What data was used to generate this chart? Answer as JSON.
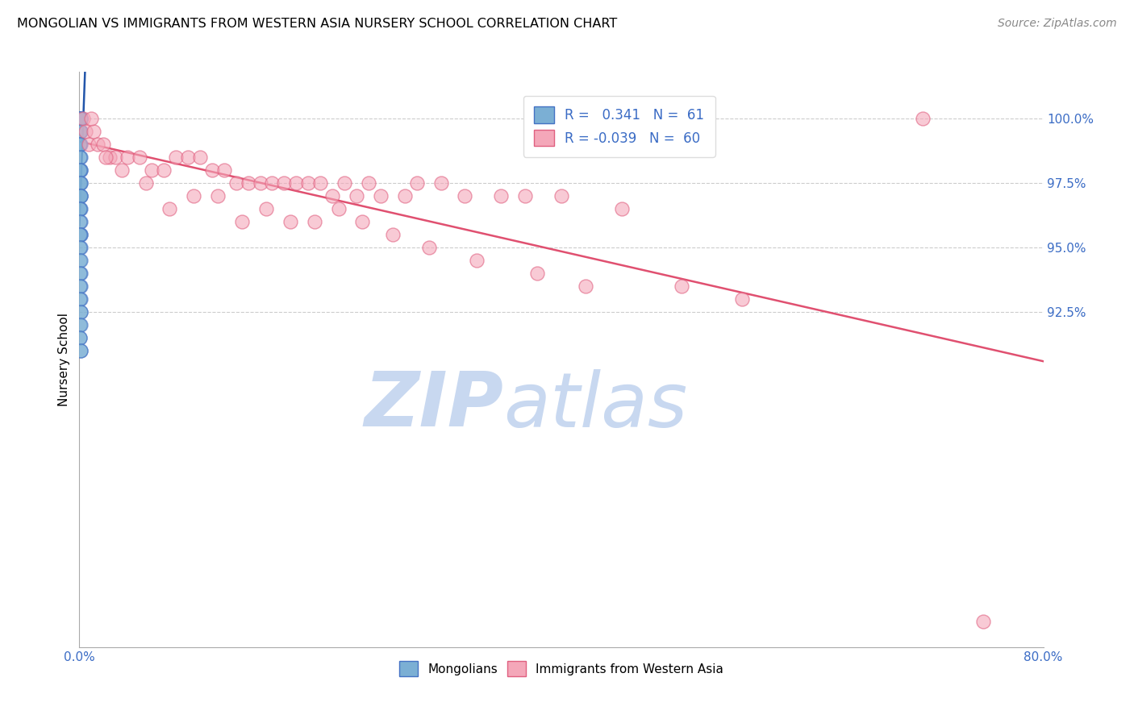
{
  "title": "MONGOLIAN VS IMMIGRANTS FROM WESTERN ASIA NURSERY SCHOOL CORRELATION CHART",
  "source": "Source: ZipAtlas.com",
  "ylabel": "Nursery School",
  "xmin": 0.0,
  "xmax": 80.0,
  "ymin": 79.5,
  "ymax": 101.8,
  "yticks": [
    92.5,
    95.0,
    97.5,
    100.0
  ],
  "ytick_labels": [
    "92.5%",
    "95.0%",
    "97.5%",
    "100.0%"
  ],
  "xticks": [
    0.0,
    10.0,
    20.0,
    30.0,
    40.0,
    50.0,
    60.0,
    70.0,
    80.0
  ],
  "xtick_labels": [
    "0.0%",
    "",
    "",
    "",
    "",
    "",
    "",
    "",
    "80.0%"
  ],
  "blue_r": 0.341,
  "blue_n": 61,
  "pink_r": -0.039,
  "pink_n": 60,
  "blue_color": "#7BAFD4",
  "pink_color": "#F4A7B9",
  "blue_edge_color": "#4472C4",
  "pink_edge_color": "#E06080",
  "blue_line_color": "#2255AA",
  "pink_line_color": "#E05070",
  "watermark_zip": "ZIP",
  "watermark_atlas": "atlas",
  "watermark_color": "#C8D8F0",
  "background_color": "#FFFFFF",
  "blue_scatter_x": [
    0.05,
    0.08,
    0.1,
    0.12,
    0.08,
    0.06,
    0.09,
    0.11,
    0.07,
    0.05,
    0.1,
    0.08,
    0.06,
    0.09,
    0.11,
    0.07,
    0.12,
    0.05,
    0.08,
    0.1,
    0.06,
    0.09,
    0.07,
    0.11,
    0.05,
    0.08,
    0.1,
    0.06,
    0.09,
    0.07,
    0.11,
    0.05,
    0.08,
    0.1,
    0.12,
    0.06,
    0.09,
    0.07,
    0.11,
    0.05,
    0.08,
    0.1,
    0.06,
    0.09,
    0.07,
    0.05,
    0.08,
    0.1,
    0.06,
    0.09,
    0.07,
    0.11,
    0.05,
    0.08,
    0.1,
    0.06,
    0.09,
    0.07,
    0.05,
    0.08,
    0.1
  ],
  "blue_scatter_y": [
    100.0,
    100.0,
    100.0,
    100.0,
    100.0,
    100.0,
    100.0,
    100.0,
    100.0,
    100.0,
    100.0,
    100.0,
    100.0,
    100.0,
    100.0,
    100.0,
    100.0,
    99.5,
    99.5,
    99.5,
    99.0,
    99.0,
    99.0,
    98.5,
    98.5,
    98.0,
    98.0,
    98.0,
    97.5,
    97.5,
    97.5,
    97.0,
    97.0,
    97.0,
    97.0,
    96.5,
    96.5,
    96.5,
    96.0,
    96.0,
    95.5,
    95.5,
    95.5,
    95.0,
    95.0,
    94.5,
    94.5,
    94.0,
    94.0,
    93.5,
    93.5,
    93.0,
    93.0,
    92.5,
    92.5,
    92.0,
    92.0,
    91.5,
    91.5,
    91.0,
    91.0
  ],
  "pink_scatter_x": [
    0.3,
    0.5,
    0.8,
    1.2,
    1.5,
    2.0,
    2.5,
    3.0,
    4.0,
    5.0,
    6.0,
    7.0,
    8.0,
    9.0,
    10.0,
    11.0,
    12.0,
    13.0,
    14.0,
    15.0,
    16.0,
    17.0,
    18.0,
    19.0,
    20.0,
    21.0,
    22.0,
    23.0,
    24.0,
    25.0,
    27.0,
    28.0,
    30.0,
    32.0,
    35.0,
    37.0,
    40.0,
    45.0,
    50.0,
    70.0,
    1.0,
    2.2,
    3.5,
    5.5,
    7.5,
    9.5,
    11.5,
    13.5,
    15.5,
    17.5,
    19.5,
    21.5,
    23.5,
    26.0,
    29.0,
    33.0,
    38.0,
    42.0,
    55.0,
    75.0
  ],
  "pink_scatter_y": [
    100.0,
    99.5,
    99.0,
    99.5,
    99.0,
    99.0,
    98.5,
    98.5,
    98.5,
    98.5,
    98.0,
    98.0,
    98.5,
    98.5,
    98.5,
    98.0,
    98.0,
    97.5,
    97.5,
    97.5,
    97.5,
    97.5,
    97.5,
    97.5,
    97.5,
    97.0,
    97.5,
    97.0,
    97.5,
    97.0,
    97.0,
    97.5,
    97.5,
    97.0,
    97.0,
    97.0,
    97.0,
    96.5,
    93.5,
    100.0,
    100.0,
    98.5,
    98.0,
    97.5,
    96.5,
    97.0,
    97.0,
    96.0,
    96.5,
    96.0,
    96.0,
    96.5,
    96.0,
    95.5,
    95.0,
    94.5,
    94.0,
    93.5,
    93.0,
    80.5
  ]
}
